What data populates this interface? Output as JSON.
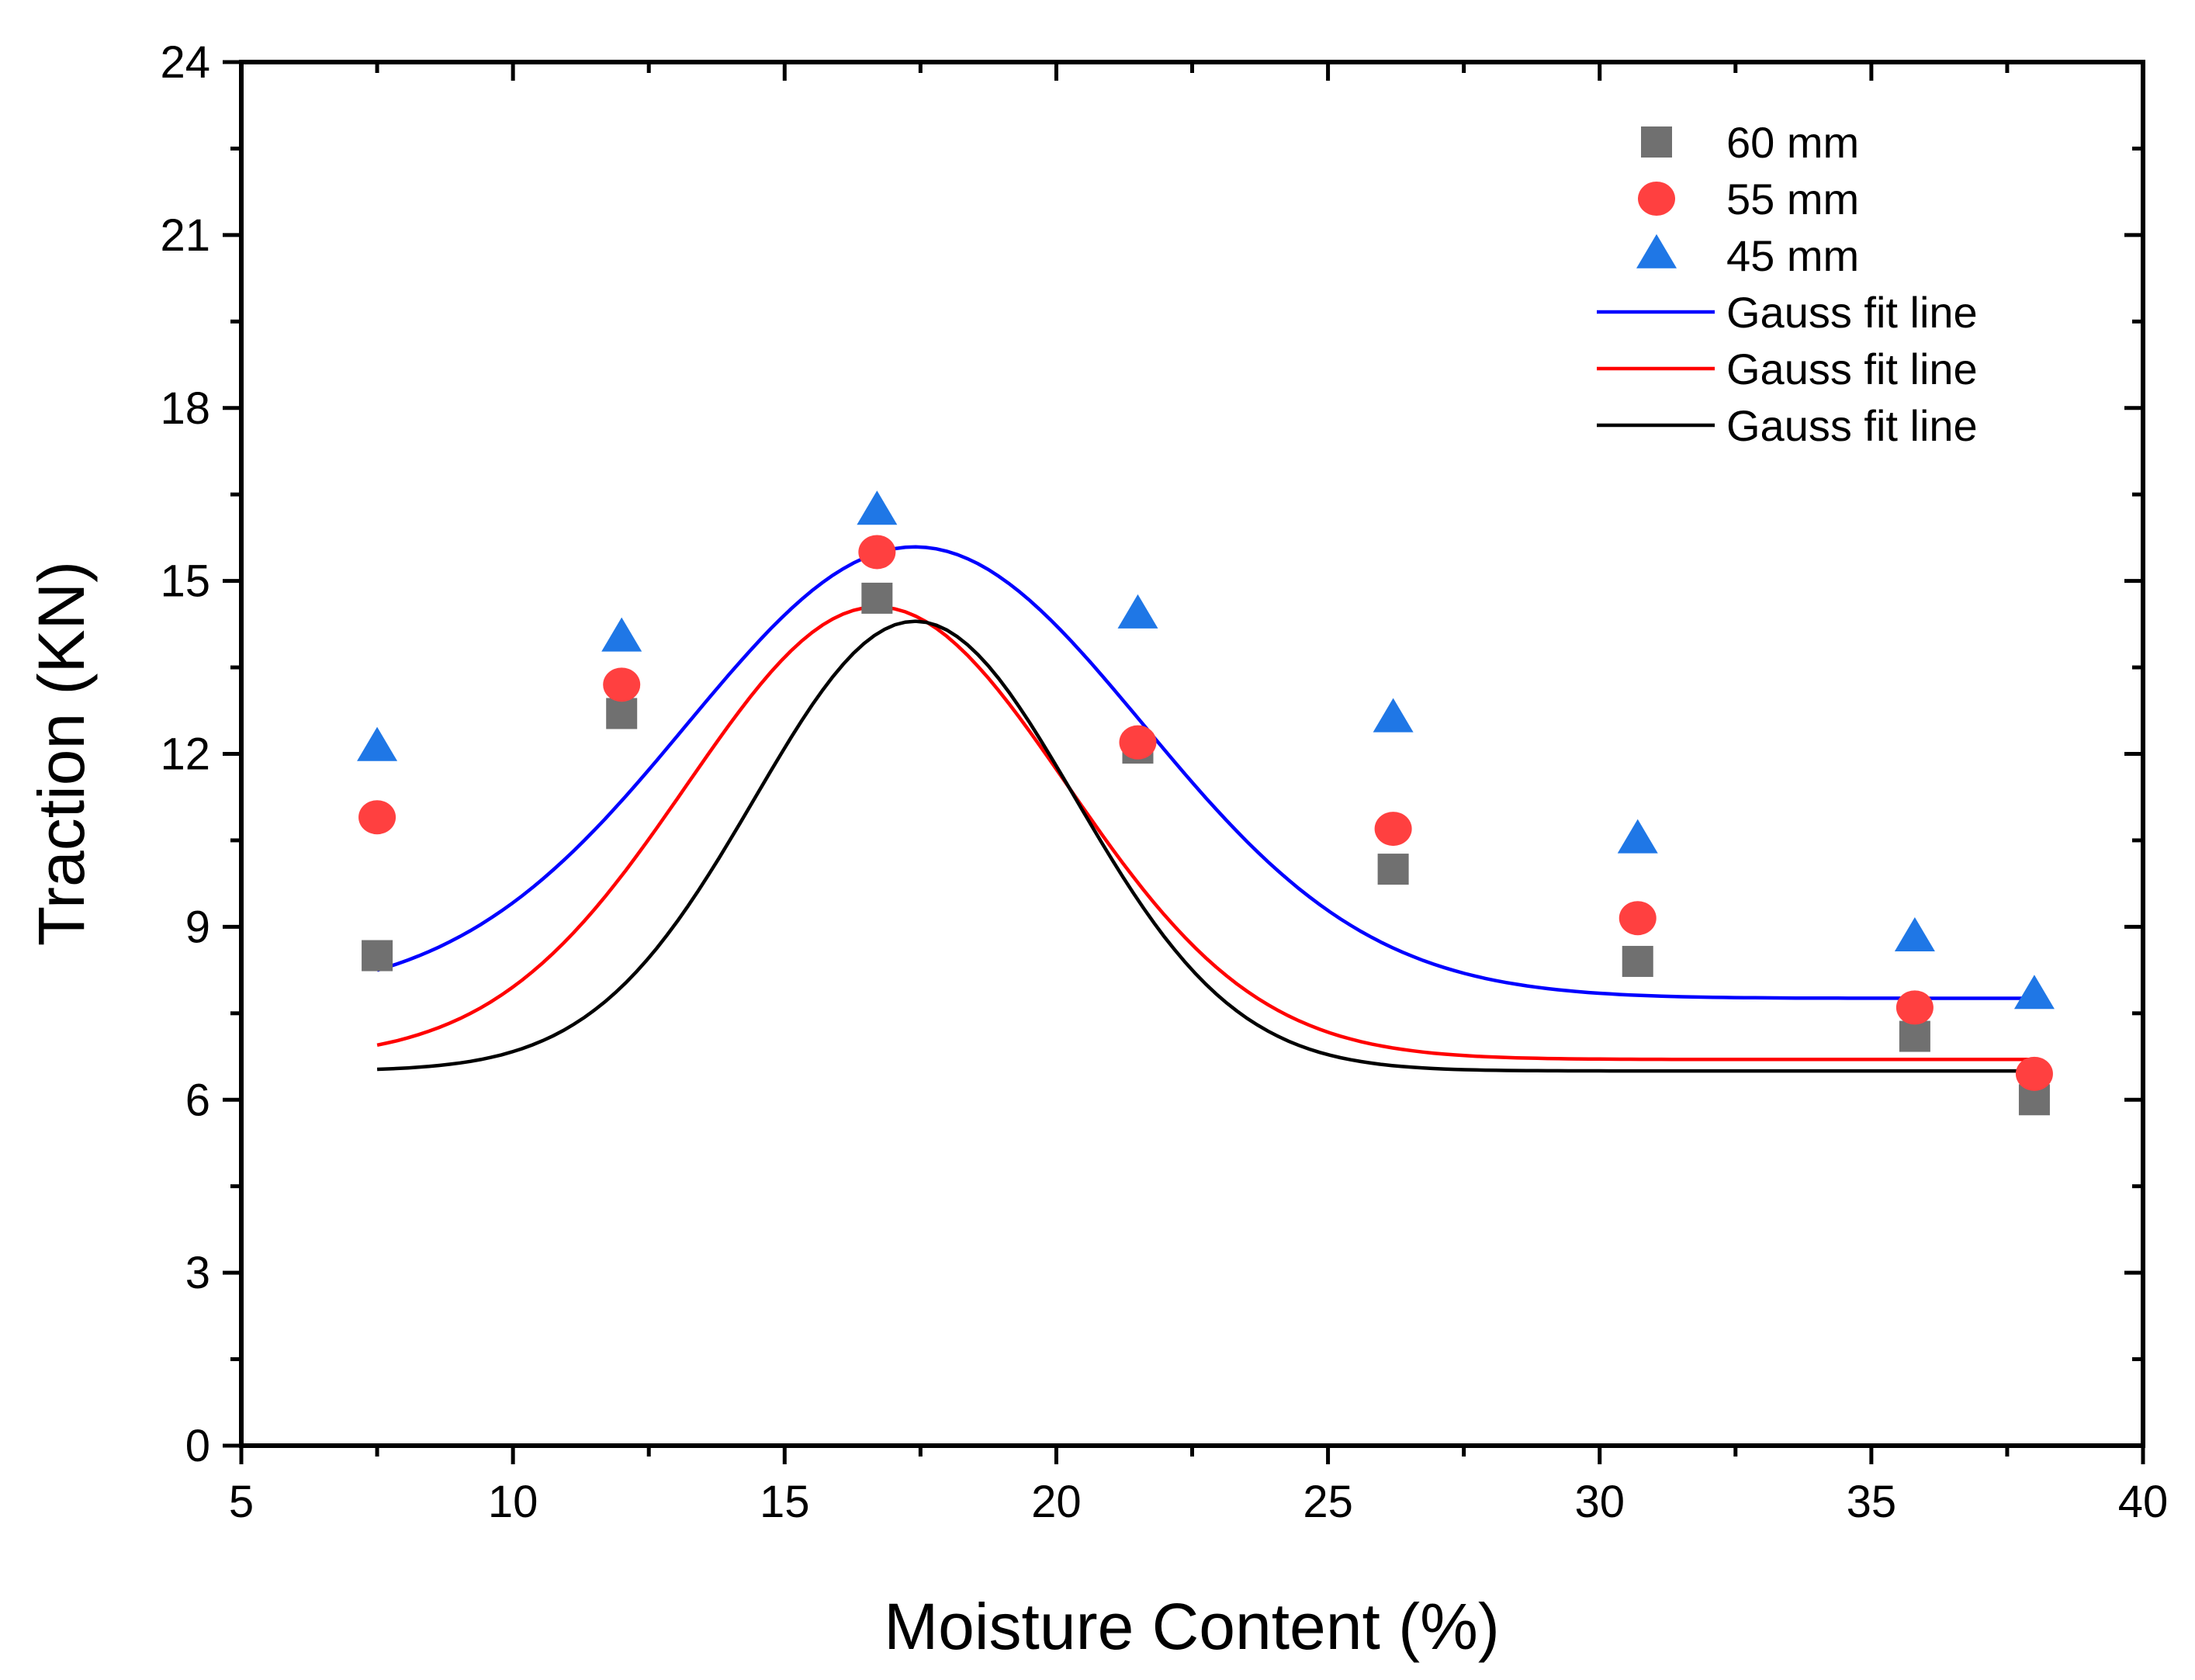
{
  "chart_data": {
    "type": "scatter",
    "title": "",
    "xlabel": "Moisture Content (%)",
    "ylabel": "Traction (KN)",
    "xlim": [
      5,
      40
    ],
    "ylim": [
      0,
      24
    ],
    "xticks": [
      5,
      10,
      15,
      20,
      25,
      30,
      35,
      40
    ],
    "yticks": [
      0,
      3,
      6,
      9,
      12,
      15,
      18,
      21,
      24
    ],
    "grid": false,
    "legend_position": "top-right",
    "series": [
      {
        "name": "60 mm",
        "marker": "square",
        "color": "#707070",
        "x": [
          7.5,
          12.0,
          16.7,
          21.5,
          26.2,
          30.7,
          35.8,
          38.0
        ],
        "y": [
          8.5,
          12.7,
          14.7,
          12.1,
          10.0,
          8.4,
          7.1,
          6.0
        ]
      },
      {
        "name": "55 mm",
        "marker": "circle",
        "color": "#ff4040",
        "x": [
          7.5,
          12.0,
          16.7,
          21.5,
          26.2,
          30.7,
          35.8,
          38.0
        ],
        "y": [
          10.9,
          13.2,
          15.5,
          12.2,
          10.7,
          9.15,
          7.6,
          6.45
        ]
      },
      {
        "name": "45 mm",
        "marker": "triangle",
        "color": "#1f77e6",
        "x": [
          7.5,
          12.0,
          16.7,
          21.5,
          26.2,
          30.7,
          35.8,
          38.0
        ],
        "y": [
          12.1,
          14.0,
          16.2,
          14.4,
          12.6,
          10.5,
          8.8,
          7.8
        ]
      }
    ],
    "fit_lines": [
      {
        "name": "Gauss fit line",
        "color": "#0000ff",
        "y0": 7.76,
        "A": 7.83,
        "xc": 17.4,
        "w": 8.4,
        "x_range": [
          7.5,
          38.0
        ]
      },
      {
        "name": "Gauss fit line",
        "color": "#ff0000",
        "y0": 6.7,
        "A": 7.85,
        "xc": 16.7,
        "w": 7.0,
        "x_range": [
          7.5,
          38.0
        ]
      },
      {
        "name": "Gauss fit line",
        "color": "#000000",
        "y0": 6.5,
        "A": 7.8,
        "xc": 17.4,
        "w": 5.9,
        "x_range": [
          7.5,
          38.0
        ]
      }
    ]
  }
}
